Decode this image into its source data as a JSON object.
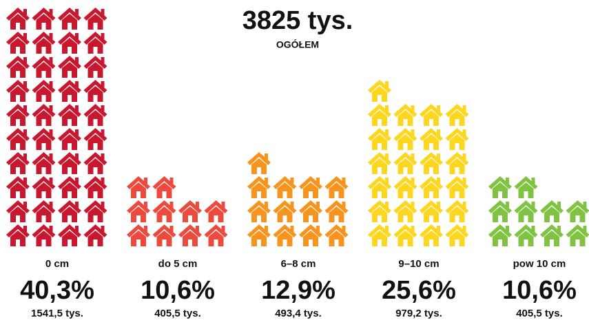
{
  "chart_data": {
    "type": "pictogram",
    "title": "3825 tys.",
    "subtitle": "OGÓŁEM",
    "categories": [
      "0 cm",
      "do 5 cm",
      "6–8 cm",
      "9–10 cm",
      "pow 10 cm"
    ],
    "values": [
      40.3,
      10.6,
      12.9,
      25.6,
      10.6
    ],
    "value_labels": [
      "40,3%",
      "10,6%",
      "12,9%",
      "25,6%",
      "10,6%"
    ],
    "amounts": [
      1541.5,
      405.5,
      493.4,
      979.2,
      405.5
    ],
    "amount_labels": [
      "1541,5 tys.",
      "405,5 tys.",
      "493,4 tys.",
      "979,2 tys.",
      "405,5 tys."
    ],
    "icons": [
      40,
      10,
      13,
      25,
      10
    ],
    "colors": [
      "#c8182f",
      "#ec4a3d",
      "#f7941d",
      "#fdd61f",
      "#80c342"
    ]
  }
}
